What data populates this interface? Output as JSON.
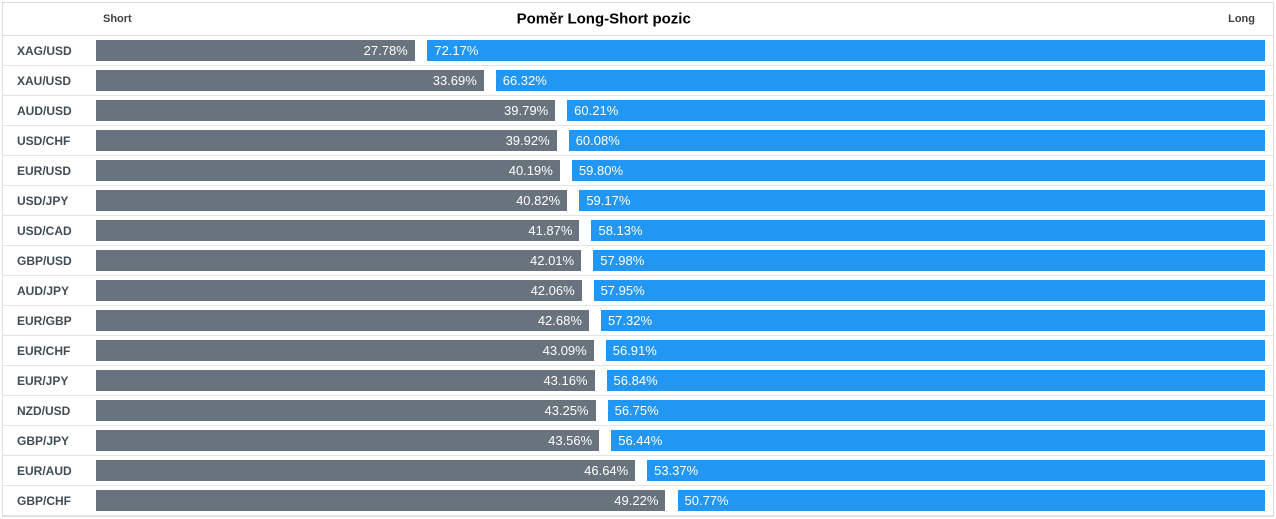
{
  "title": "Poměr Long-Short pozic",
  "header": {
    "short_label": "Short",
    "long_label": "Long"
  },
  "colors": {
    "short_bar": "#68737e",
    "long_bar": "#2196f3",
    "value_label": "#ffffff",
    "pair_label": "#414d56",
    "header_label": "#3f3f3f",
    "row_border": "#e4e4e4",
    "outer_border": "#dcdcdc"
  },
  "rows": [
    {
      "pair": "XAG/USD",
      "short": 27.78,
      "long": 72.17,
      "short_label": "27.78%",
      "long_label": "72.17%"
    },
    {
      "pair": "XAU/USD",
      "short": 33.69,
      "long": 66.32,
      "short_label": "33.69%",
      "long_label": "66.32%"
    },
    {
      "pair": "AUD/USD",
      "short": 39.79,
      "long": 60.21,
      "short_label": "39.79%",
      "long_label": "60.21%"
    },
    {
      "pair": "USD/CHF",
      "short": 39.92,
      "long": 60.08,
      "short_label": "39.92%",
      "long_label": "60.08%"
    },
    {
      "pair": "EUR/USD",
      "short": 40.19,
      "long": 59.8,
      "short_label": "40.19%",
      "long_label": "59.80%"
    },
    {
      "pair": "USD/JPY",
      "short": 40.82,
      "long": 59.17,
      "short_label": "40.82%",
      "long_label": "59.17%"
    },
    {
      "pair": "USD/CAD",
      "short": 41.87,
      "long": 58.13,
      "short_label": "41.87%",
      "long_label": "58.13%"
    },
    {
      "pair": "GBP/USD",
      "short": 42.01,
      "long": 57.98,
      "short_label": "42.01%",
      "long_label": "57.98%"
    },
    {
      "pair": "AUD/JPY",
      "short": 42.06,
      "long": 57.95,
      "short_label": "42.06%",
      "long_label": "57.95%"
    },
    {
      "pair": "EUR/GBP",
      "short": 42.68,
      "long": 57.32,
      "short_label": "42.68%",
      "long_label": "57.32%"
    },
    {
      "pair": "EUR/CHF",
      "short": 43.09,
      "long": 56.91,
      "short_label": "43.09%",
      "long_label": "56.91%"
    },
    {
      "pair": "EUR/JPY",
      "short": 43.16,
      "long": 56.84,
      "short_label": "43.16%",
      "long_label": "56.84%"
    },
    {
      "pair": "NZD/USD",
      "short": 43.25,
      "long": 56.75,
      "short_label": "43.25%",
      "long_label": "56.75%"
    },
    {
      "pair": "GBP/JPY",
      "short": 43.56,
      "long": 56.44,
      "short_label": "43.56%",
      "long_label": "56.44%"
    },
    {
      "pair": "EUR/AUD",
      "short": 46.64,
      "long": 53.37,
      "short_label": "46.64%",
      "long_label": "53.37%"
    },
    {
      "pair": "GBP/CHF",
      "short": 49.22,
      "long": 50.77,
      "short_label": "49.22%",
      "long_label": "50.77%"
    }
  ],
  "chart_data": {
    "type": "bar",
    "orientation": "horizontal",
    "title": "Poměr Long-Short pozic",
    "categories": [
      "XAG/USD",
      "XAU/USD",
      "AUD/USD",
      "USD/CHF",
      "EUR/USD",
      "USD/JPY",
      "USD/CAD",
      "GBP/USD",
      "AUD/JPY",
      "EUR/GBP",
      "EUR/CHF",
      "EUR/JPY",
      "NZD/USD",
      "GBP/JPY",
      "EUR/AUD",
      "GBP/CHF"
    ],
    "series": [
      {
        "name": "Short",
        "color": "#68737e",
        "values": [
          27.78,
          33.69,
          39.79,
          39.92,
          40.19,
          40.82,
          41.87,
          42.01,
          42.06,
          42.68,
          43.09,
          43.16,
          43.25,
          43.56,
          46.64,
          49.22
        ]
      },
      {
        "name": "Long",
        "color": "#2196f3",
        "values": [
          72.17,
          66.32,
          60.21,
          60.08,
          59.8,
          59.17,
          58.13,
          57.98,
          57.95,
          57.32,
          56.91,
          56.84,
          56.75,
          56.44,
          53.37,
          50.77
        ]
      }
    ],
    "value_format": "percent",
    "xlim": [
      0,
      100
    ],
    "data_labels": true,
    "grid": false,
    "legend_position": "top-corners"
  }
}
